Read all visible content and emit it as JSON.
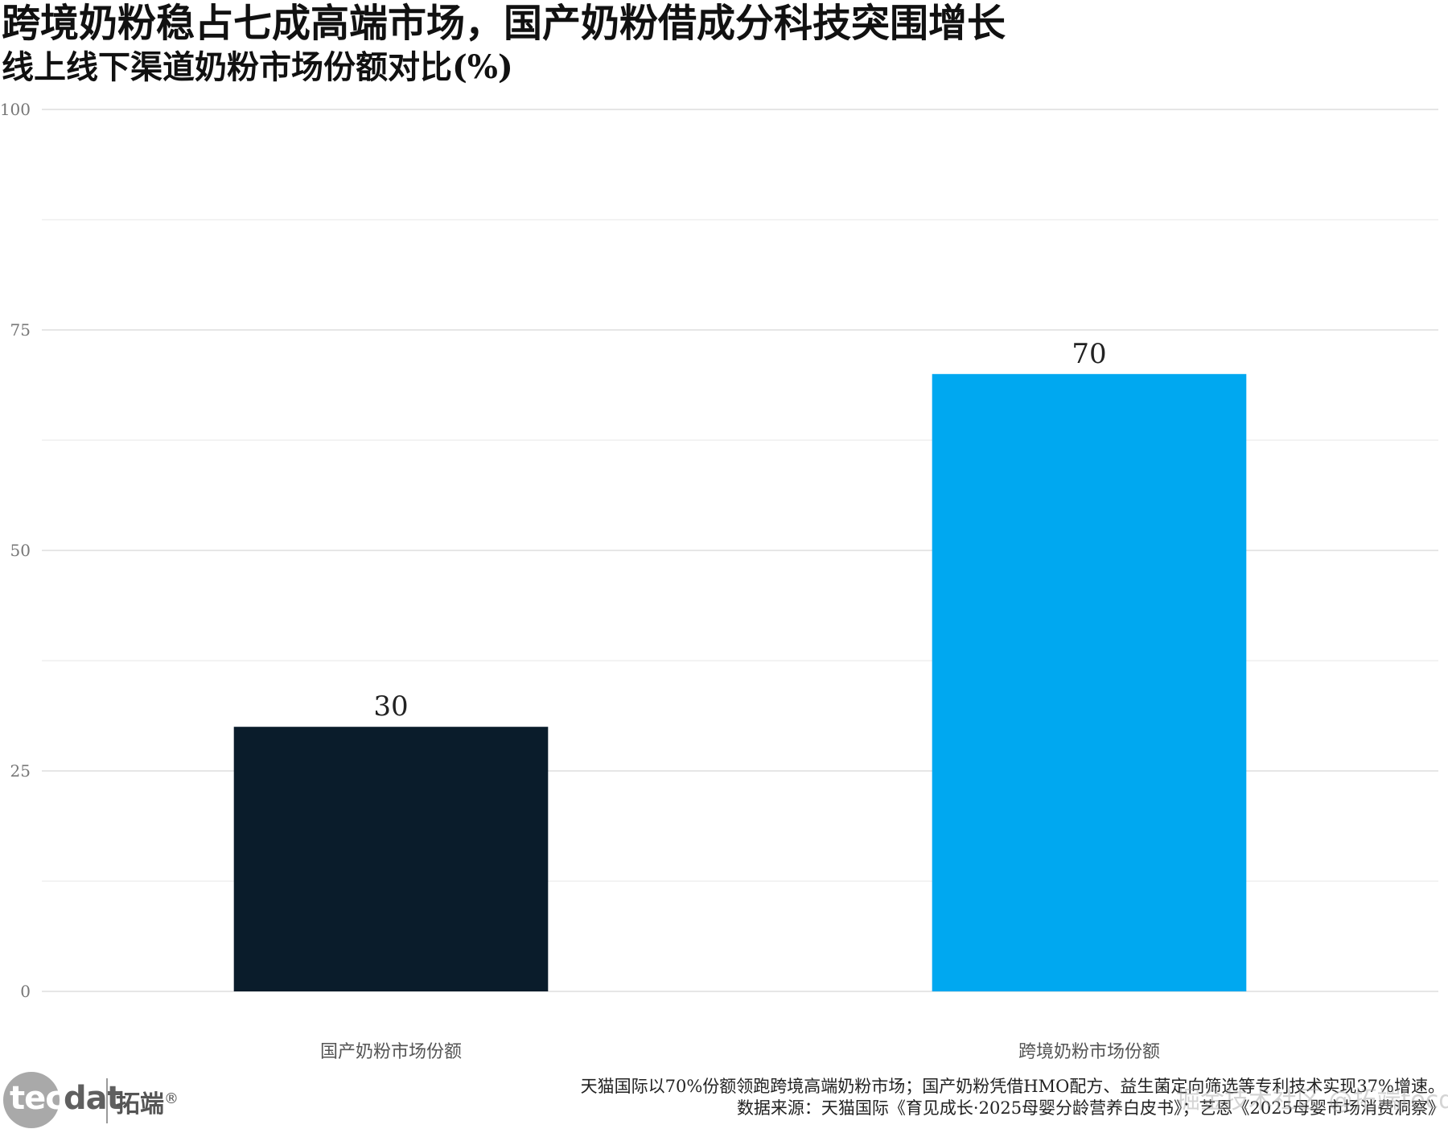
{
  "title": "跨境奶粉稳占七成高端市场，国产奶粉借成分科技突围增长",
  "subtitle": "线上线下渠道奶粉市场份额对比(%)",
  "chart_data": {
    "type": "bar",
    "categories": [
      "国产奶粉市场份额",
      "跨境奶粉市场份额"
    ],
    "values": [
      30,
      70
    ],
    "data_labels": [
      "30",
      "70"
    ],
    "colors": [
      "#0a1c2b",
      "#00a8f0"
    ],
    "ylim": [
      0,
      100
    ],
    "yticks": [
      0,
      25,
      50,
      75,
      100
    ],
    "ytick_labels": [
      "0",
      "25",
      "50",
      "75",
      "100"
    ],
    "minor_grid": [
      12.5,
      37.5,
      62.5,
      87.5
    ],
    "grid": true,
    "legend": "none",
    "xlabel": "",
    "ylabel": ""
  },
  "logo": {
    "brand_en_part1": "tec",
    "brand_en_part2": "dat",
    "brand_cn": "拓端",
    "reg_mark": "®"
  },
  "footer": {
    "note": "天猫国际以70%份额领跑跨境高端奶粉市场；国产奶粉凭借HMO配方、益生菌定向筛选等专利技术实现37%增速。",
    "source": "数据来源：天猫国际《育见成长·2025母婴分龄营养白皮书》；艺恩《2025母婴市场消费洞察》"
  },
  "watermark": "掘金技术社区 @拓端tecdat"
}
